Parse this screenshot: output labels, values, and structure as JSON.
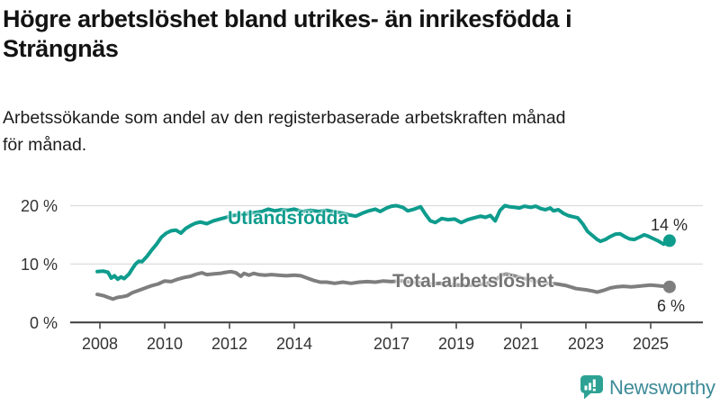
{
  "header": {
    "title_lines": [
      "Högre arbetslöshet bland utrikes- än inrikesfödda i",
      "Strängnäs"
    ],
    "subtitle_lines": [
      "Arbetssökande som andel av den registerbaserade arbetskraften månad",
      "för månad."
    ]
  },
  "chart_data": {
    "type": "line",
    "title": "Högre arbetslöshet bland utrikes- än inrikesfödda i Strängnäs",
    "subtitle": "Arbetssökande som andel av den registerbaserade arbetskraften månad för månad.",
    "unit": "%",
    "grid": "horizontal",
    "legend": "inline-labels",
    "x_axis": {
      "tick_years": [
        2008,
        2010,
        2012,
        2014,
        2017,
        2019,
        2021,
        2023,
        2025
      ],
      "tick_labels": [
        "2008",
        "2010",
        "2012",
        "2014",
        "2017",
        "2019",
        "2021",
        "2023",
        "2025"
      ],
      "range": [
        2007.9,
        2025.8
      ]
    },
    "y_axis": {
      "tick_values": [
        0,
        10,
        20
      ],
      "tick_labels": [
        "0 %",
        "10 %",
        "20 %"
      ],
      "range": [
        0,
        21
      ]
    },
    "series": [
      {
        "name": "Utlandsfödda",
        "color": "#0e9c8d",
        "label_color": "#0e9c8d",
        "end_label": "14 %",
        "end_value": 14,
        "points": [
          [
            2007.92,
            8.7
          ],
          [
            2008.1,
            8.8
          ],
          [
            2008.25,
            8.6
          ],
          [
            2008.35,
            7.6
          ],
          [
            2008.45,
            8.0
          ],
          [
            2008.55,
            7.4
          ],
          [
            2008.65,
            7.8
          ],
          [
            2008.75,
            7.5
          ],
          [
            2008.9,
            8.3
          ],
          [
            2009.0,
            9.2
          ],
          [
            2009.1,
            10.0
          ],
          [
            2009.2,
            10.5
          ],
          [
            2009.3,
            10.4
          ],
          [
            2009.45,
            11.3
          ],
          [
            2009.6,
            12.4
          ],
          [
            2009.75,
            13.4
          ],
          [
            2009.9,
            14.6
          ],
          [
            2010.05,
            15.3
          ],
          [
            2010.2,
            15.7
          ],
          [
            2010.35,
            15.8
          ],
          [
            2010.5,
            15.3
          ],
          [
            2010.65,
            16.1
          ],
          [
            2010.8,
            16.6
          ],
          [
            2010.95,
            17.0
          ],
          [
            2011.1,
            17.2
          ],
          [
            2011.3,
            16.9
          ],
          [
            2011.5,
            17.4
          ],
          [
            2011.7,
            17.7
          ],
          [
            2011.9,
            18.0
          ],
          [
            2012.1,
            18.3
          ],
          [
            2012.3,
            18.4
          ],
          [
            2012.5,
            18.6
          ],
          [
            2012.75,
            18.8
          ],
          [
            2013.0,
            19.0
          ],
          [
            2013.2,
            19.4
          ],
          [
            2013.4,
            19.1
          ],
          [
            2013.6,
            19.3
          ],
          [
            2013.8,
            19.2
          ],
          [
            2014.0,
            19.4
          ],
          [
            2014.25,
            19.0
          ],
          [
            2014.5,
            19.2
          ],
          [
            2014.75,
            19.0
          ],
          [
            2015.0,
            19.2
          ],
          [
            2015.25,
            18.9
          ],
          [
            2015.5,
            18.7
          ],
          [
            2015.7,
            18.4
          ],
          [
            2015.9,
            18.2
          ],
          [
            2016.1,
            18.7
          ],
          [
            2016.3,
            19.1
          ],
          [
            2016.5,
            19.4
          ],
          [
            2016.65,
            19.0
          ],
          [
            2016.85,
            19.6
          ],
          [
            2017.0,
            19.9
          ],
          [
            2017.15,
            20.0
          ],
          [
            2017.35,
            19.7
          ],
          [
            2017.5,
            19.1
          ],
          [
            2017.7,
            19.4
          ],
          [
            2017.9,
            19.8
          ],
          [
            2018.05,
            18.5
          ],
          [
            2018.2,
            17.4
          ],
          [
            2018.35,
            17.1
          ],
          [
            2018.55,
            17.8
          ],
          [
            2018.75,
            17.6
          ],
          [
            2018.95,
            17.7
          ],
          [
            2019.15,
            17.1
          ],
          [
            2019.35,
            17.6
          ],
          [
            2019.55,
            17.9
          ],
          [
            2019.75,
            18.2
          ],
          [
            2019.9,
            18.0
          ],
          [
            2020.05,
            18.3
          ],
          [
            2020.2,
            17.4
          ],
          [
            2020.35,
            19.2
          ],
          [
            2020.5,
            20.0
          ],
          [
            2020.65,
            19.8
          ],
          [
            2020.8,
            19.7
          ],
          [
            2020.95,
            19.6
          ],
          [
            2021.1,
            19.9
          ],
          [
            2021.3,
            19.7
          ],
          [
            2021.45,
            19.9
          ],
          [
            2021.6,
            19.5
          ],
          [
            2021.75,
            19.3
          ],
          [
            2021.9,
            19.6
          ],
          [
            2022.0,
            19.1
          ],
          [
            2022.15,
            19.3
          ],
          [
            2022.3,
            18.7
          ],
          [
            2022.45,
            18.3
          ],
          [
            2022.6,
            18.1
          ],
          [
            2022.75,
            17.9
          ],
          [
            2022.9,
            16.9
          ],
          [
            2023.05,
            15.6
          ],
          [
            2023.2,
            14.9
          ],
          [
            2023.35,
            14.2
          ],
          [
            2023.45,
            13.9
          ],
          [
            2023.6,
            14.2
          ],
          [
            2023.75,
            14.7
          ],
          [
            2023.9,
            15.1
          ],
          [
            2024.05,
            15.2
          ],
          [
            2024.2,
            14.7
          ],
          [
            2024.35,
            14.3
          ],
          [
            2024.5,
            14.2
          ],
          [
            2024.65,
            14.6
          ],
          [
            2024.8,
            15.0
          ],
          [
            2024.95,
            14.7
          ],
          [
            2025.1,
            14.3
          ],
          [
            2025.25,
            13.9
          ],
          [
            2025.4,
            13.4
          ],
          [
            2025.58,
            14.0
          ]
        ]
      },
      {
        "name": "Total arbetslöshet",
        "color": "#7e7e7e",
        "label_color": "#757575",
        "end_label": "6 %",
        "end_value": 6,
        "points": [
          [
            2007.92,
            4.8
          ],
          [
            2008.1,
            4.6
          ],
          [
            2008.25,
            4.3
          ],
          [
            2008.4,
            4.0
          ],
          [
            2008.55,
            4.3
          ],
          [
            2008.7,
            4.4
          ],
          [
            2008.85,
            4.6
          ],
          [
            2009.0,
            5.1
          ],
          [
            2009.2,
            5.5
          ],
          [
            2009.4,
            5.9
          ],
          [
            2009.6,
            6.3
          ],
          [
            2009.8,
            6.6
          ],
          [
            2010.0,
            7.1
          ],
          [
            2010.2,
            7.0
          ],
          [
            2010.4,
            7.4
          ],
          [
            2010.6,
            7.7
          ],
          [
            2010.8,
            7.9
          ],
          [
            2011.0,
            8.3
          ],
          [
            2011.15,
            8.5
          ],
          [
            2011.3,
            8.2
          ],
          [
            2011.5,
            8.3
          ],
          [
            2011.7,
            8.4
          ],
          [
            2011.9,
            8.6
          ],
          [
            2012.05,
            8.7
          ],
          [
            2012.2,
            8.5
          ],
          [
            2012.35,
            7.9
          ],
          [
            2012.45,
            8.4
          ],
          [
            2012.6,
            8.1
          ],
          [
            2012.75,
            8.4
          ],
          [
            2012.9,
            8.2
          ],
          [
            2013.1,
            8.1
          ],
          [
            2013.3,
            8.2
          ],
          [
            2013.5,
            8.1
          ],
          [
            2013.75,
            8.0
          ],
          [
            2014.0,
            8.1
          ],
          [
            2014.2,
            8.0
          ],
          [
            2014.4,
            7.6
          ],
          [
            2014.6,
            7.2
          ],
          [
            2014.8,
            6.9
          ],
          [
            2015.0,
            6.9
          ],
          [
            2015.25,
            6.7
          ],
          [
            2015.5,
            6.9
          ],
          [
            2015.75,
            6.7
          ],
          [
            2016.0,
            6.9
          ],
          [
            2016.25,
            7.0
          ],
          [
            2016.5,
            6.9
          ],
          [
            2016.75,
            7.1
          ],
          [
            2017.0,
            7.0
          ],
          [
            2017.3,
            7.1
          ],
          [
            2017.6,
            6.9
          ],
          [
            2017.9,
            6.8
          ],
          [
            2018.2,
            6.6
          ],
          [
            2018.5,
            6.7
          ],
          [
            2018.8,
            6.5
          ],
          [
            2019.1,
            6.4
          ],
          [
            2019.4,
            6.4
          ],
          [
            2019.7,
            6.5
          ],
          [
            2019.95,
            6.7
          ],
          [
            2020.2,
            7.2
          ],
          [
            2020.4,
            8.1
          ],
          [
            2020.55,
            8.3
          ],
          [
            2020.7,
            8.1
          ],
          [
            2020.9,
            7.8
          ],
          [
            2021.1,
            7.5
          ],
          [
            2021.35,
            7.2
          ],
          [
            2021.6,
            6.9
          ],
          [
            2021.85,
            6.7
          ],
          [
            2022.1,
            6.6
          ],
          [
            2022.4,
            6.3
          ],
          [
            2022.7,
            5.8
          ],
          [
            2023.0,
            5.6
          ],
          [
            2023.2,
            5.4
          ],
          [
            2023.35,
            5.2
          ],
          [
            2023.55,
            5.5
          ],
          [
            2023.75,
            5.9
          ],
          [
            2023.95,
            6.1
          ],
          [
            2024.15,
            6.2
          ],
          [
            2024.4,
            6.1
          ],
          [
            2024.6,
            6.2
          ],
          [
            2024.8,
            6.3
          ],
          [
            2025.0,
            6.4
          ],
          [
            2025.2,
            6.3
          ],
          [
            2025.4,
            6.2
          ],
          [
            2025.58,
            6.1
          ]
        ]
      }
    ]
  },
  "footer": {
    "brand": "Newsworthy",
    "brand_text_color": "#3c8a97",
    "brand_icon_color": "#2da294",
    "brand_icon": "bar-chart-speech-bubble-icon"
  }
}
